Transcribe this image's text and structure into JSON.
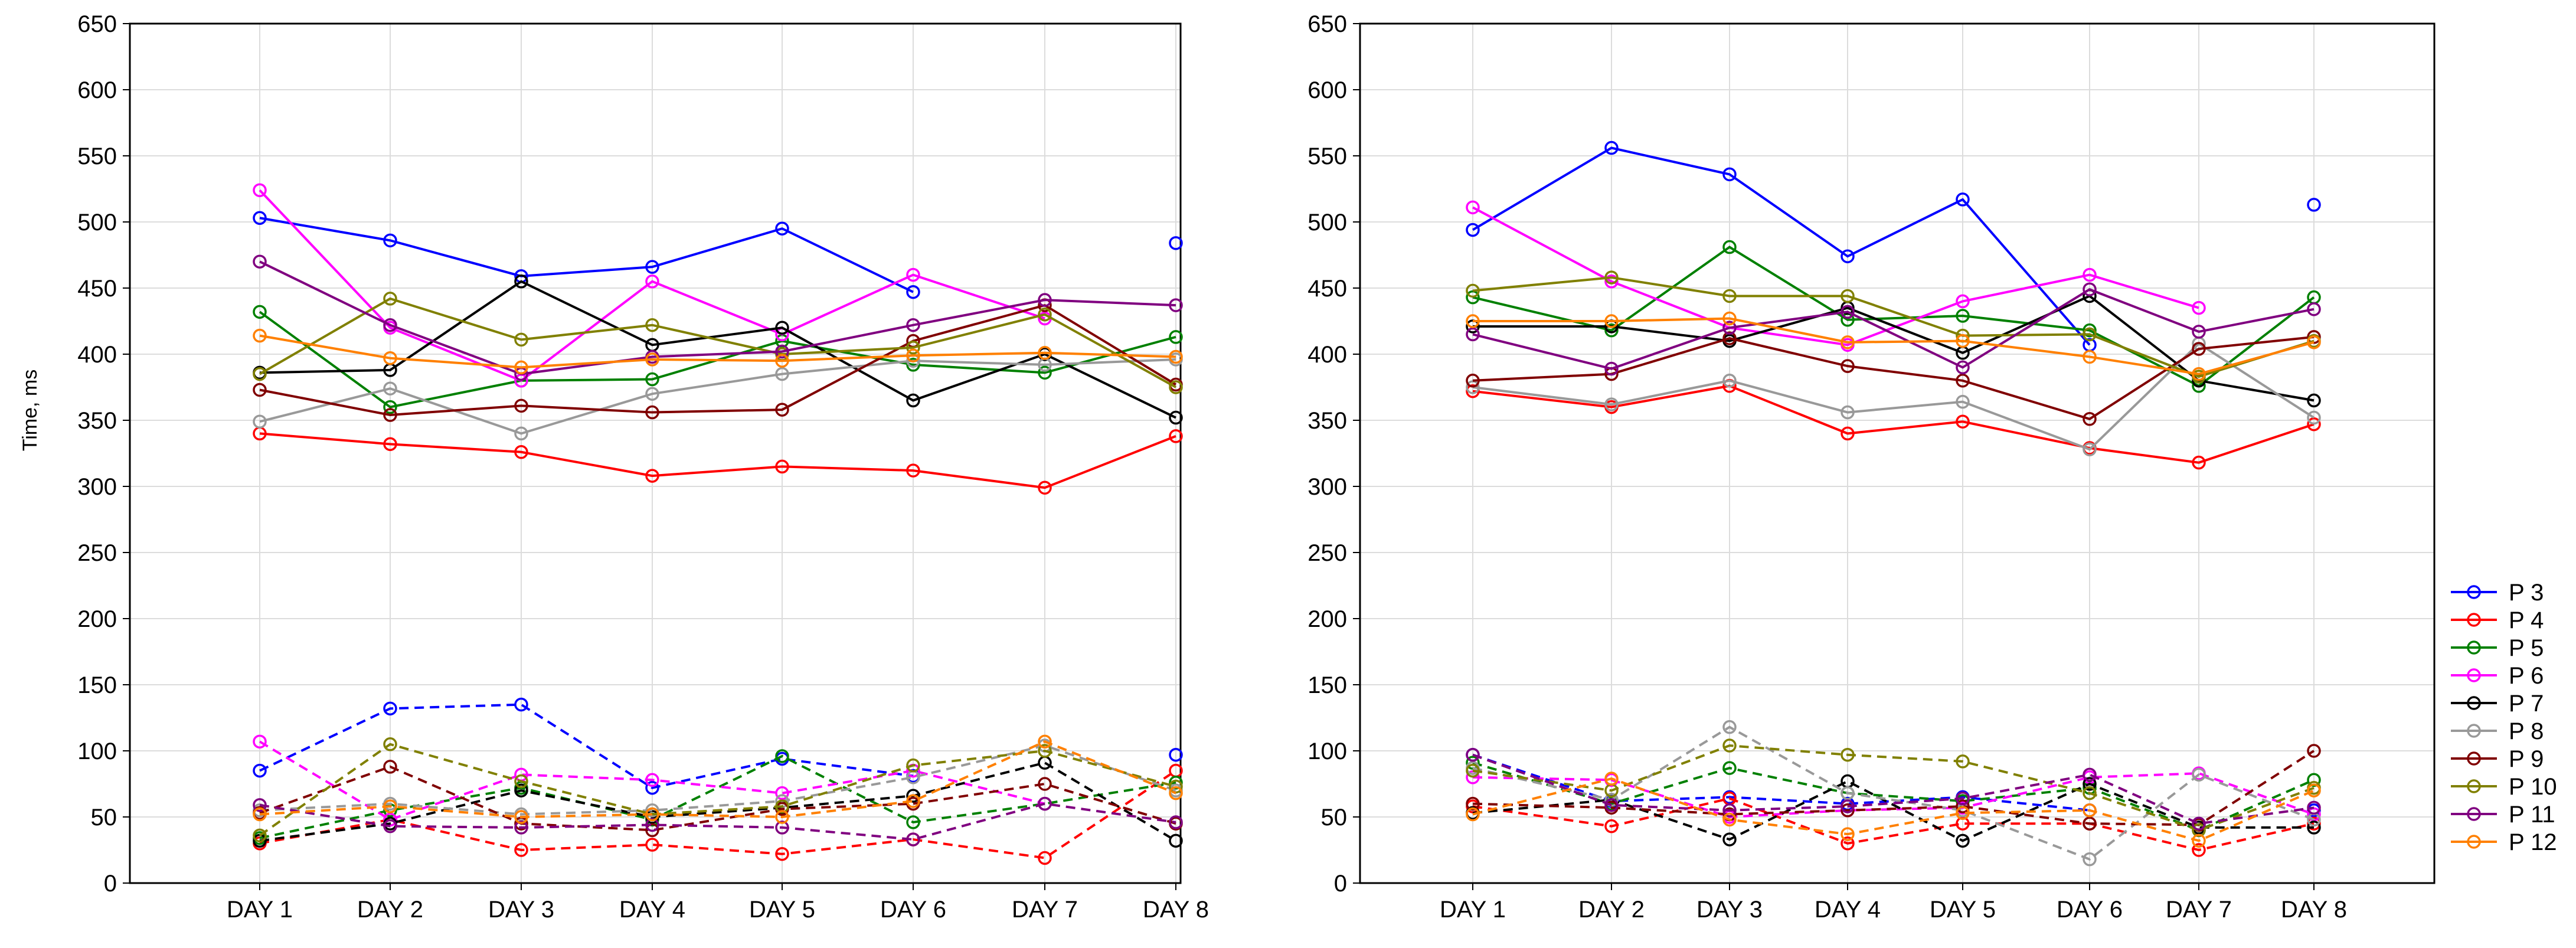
{
  "chart_data": [
    {
      "type": "line",
      "title": "",
      "xlabel": "",
      "ylabel": "Time, ms",
      "ylim": [
        0,
        650
      ],
      "yticks": [
        0,
        50,
        100,
        150,
        200,
        250,
        300,
        350,
        400,
        450,
        500,
        550,
        600,
        650
      ],
      "grid": true,
      "categories": [
        "DAY 1",
        "DAY 2",
        "DAY 3",
        "DAY 4",
        "DAY 5",
        "DAY 6",
        "DAY 7",
        "DAY 8"
      ],
      "series": [
        {
          "name": "P 3",
          "color": "#0000ff",
          "dash": false,
          "values": [
            503,
            486,
            459,
            466,
            495,
            447,
            null,
            484
          ]
        },
        {
          "name": "P 4",
          "color": "#ff0000",
          "dash": false,
          "values": [
            340,
            332,
            326,
            308,
            315,
            312,
            299,
            338
          ]
        },
        {
          "name": "P 5",
          "color": "#008000",
          "dash": false,
          "values": [
            432,
            360,
            380,
            381,
            410,
            392,
            386,
            413
          ]
        },
        {
          "name": "P 6",
          "color": "#ff00ff",
          "dash": false,
          "values": [
            524,
            420,
            380,
            455,
            415,
            460,
            427,
            null
          ]
        },
        {
          "name": "P 7",
          "color": "#000000",
          "dash": false,
          "values": [
            386,
            388,
            455,
            407,
            420,
            365,
            400,
            352
          ]
        },
        {
          "name": "P 8",
          "color": "#999999",
          "dash": false,
          "values": [
            349,
            374,
            340,
            370,
            385,
            395,
            392,
            396
          ]
        },
        {
          "name": "P 9",
          "color": "#800000",
          "dash": false,
          "values": [
            373,
            354,
            361,
            356,
            358,
            410,
            437,
            377
          ]
        },
        {
          "name": "P 10",
          "color": "#808000",
          "dash": false,
          "values": [
            385,
            442,
            411,
            422,
            400,
            405,
            430,
            375
          ]
        },
        {
          "name": "P 11",
          "color": "#800080",
          "dash": false,
          "values": [
            470,
            422,
            385,
            398,
            402,
            422,
            441,
            437
          ]
        },
        {
          "name": "P 12",
          "color": "#ff8000",
          "dash": false,
          "values": [
            414,
            397,
            390,
            396,
            395,
            399,
            401,
            398
          ]
        },
        {
          "name": "",
          "color": "#0000ff",
          "dash": true,
          "values": [
            85,
            132,
            135,
            72,
            94,
            81,
            null,
            97
          ]
        },
        {
          "name": "",
          "color": "#ff0000",
          "dash": true,
          "values": [
            30,
            48,
            25,
            29,
            22,
            33,
            19,
            85
          ]
        },
        {
          "name": "",
          "color": "#008000",
          "dash": true,
          "values": [
            34,
            55,
            72,
            48,
            96,
            46,
            60,
            76
          ]
        },
        {
          "name": "",
          "color": "#ff00ff",
          "dash": true,
          "values": [
            107,
            48,
            82,
            78,
            68,
            85,
            60,
            null
          ]
        },
        {
          "name": "",
          "color": "#000000",
          "dash": true,
          "values": [
            32,
            45,
            70,
            50,
            57,
            66,
            91,
            32
          ]
        },
        {
          "name": "",
          "color": "#999999",
          "dash": true,
          "values": [
            55,
            60,
            52,
            55,
            62,
            80,
            104,
            70
          ]
        },
        {
          "name": "",
          "color": "#800000",
          "dash": true,
          "values": [
            53,
            88,
            45,
            40,
            56,
            60,
            75,
            45
          ]
        },
        {
          "name": "",
          "color": "#808000",
          "dash": true,
          "values": [
            36,
            105,
            77,
            52,
            58,
            89,
            100,
            73
          ]
        },
        {
          "name": "",
          "color": "#800080",
          "dash": true,
          "values": [
            59,
            43,
            42,
            44,
            42,
            33,
            60,
            46
          ]
        },
        {
          "name": "",
          "color": "#ff8000",
          "dash": true,
          "values": [
            52,
            58,
            50,
            52,
            50,
            62,
            107,
            68
          ]
        }
      ]
    },
    {
      "type": "line",
      "title": "",
      "xlabel": "",
      "ylabel": "",
      "ylim": [
        0,
        650
      ],
      "yticks": [
        0,
        50,
        100,
        150,
        200,
        250,
        300,
        350,
        400,
        450,
        500,
        550,
        600,
        650
      ],
      "grid": true,
      "categories": [
        "DAY 1",
        "DAY 2",
        "DAY 3",
        "DAY 4",
        "DAY 5",
        "DAY 6",
        "DAY 7",
        "DAY 8"
      ],
      "series": [
        {
          "name": "P 3",
          "color": "#0000ff",
          "dash": false,
          "values": [
            494,
            556,
            536,
            474,
            517,
            407,
            null,
            513
          ]
        },
        {
          "name": "P 4",
          "color": "#ff0000",
          "dash": false,
          "values": [
            372,
            360,
            376,
            340,
            349,
            329,
            318,
            347
          ]
        },
        {
          "name": "P 5",
          "color": "#008000",
          "dash": false,
          "values": [
            443,
            418,
            481,
            426,
            429,
            418,
            376,
            443
          ]
        },
        {
          "name": "P 6",
          "color": "#ff00ff",
          "dash": false,
          "values": [
            511,
            455,
            420,
            407,
            440,
            460,
            435,
            null
          ]
        },
        {
          "name": "P 7",
          "color": "#000000",
          "dash": false,
          "values": [
            421,
            421,
            410,
            435,
            401,
            444,
            380,
            365
          ]
        },
        {
          "name": "P 8",
          "color": "#999999",
          "dash": false,
          "values": [
            375,
            362,
            380,
            356,
            364,
            328,
            408,
            352
          ]
        },
        {
          "name": "P 9",
          "color": "#800000",
          "dash": false,
          "values": [
            380,
            385,
            412,
            391,
            380,
            351,
            404,
            413
          ]
        },
        {
          "name": "P 10",
          "color": "#808000",
          "dash": false,
          "values": [
            448,
            458,
            444,
            444,
            414,
            415,
            383,
            410
          ]
        },
        {
          "name": "P 11",
          "color": "#800080",
          "dash": false,
          "values": [
            415,
            389,
            420,
            432,
            390,
            449,
            417,
            434
          ]
        },
        {
          "name": "P 12",
          "color": "#ff8000",
          "dash": false,
          "values": [
            425,
            425,
            427,
            409,
            410,
            398,
            385,
            409
          ]
        },
        {
          "name": "",
          "color": "#0000ff",
          "dash": true,
          "values": [
            97,
            62,
            65,
            60,
            65,
            55,
            null,
            55
          ]
        },
        {
          "name": "",
          "color": "#ff0000",
          "dash": true,
          "values": [
            58,
            43,
            64,
            30,
            45,
            45,
            25,
            45
          ]
        },
        {
          "name": "",
          "color": "#008000",
          "dash": true,
          "values": [
            91,
            60,
            87,
            68,
            62,
            72,
            40,
            78
          ]
        },
        {
          "name": "",
          "color": "#ff00ff",
          "dash": true,
          "values": [
            80,
            78,
            50,
            55,
            57,
            80,
            83,
            52
          ]
        },
        {
          "name": "",
          "color": "#000000",
          "dash": true,
          "values": [
            53,
            63,
            33,
            77,
            32,
            75,
            42,
            42
          ]
        },
        {
          "name": "",
          "color": "#999999",
          "dash": true,
          "values": [
            87,
            63,
            118,
            68,
            55,
            18,
            82,
            48
          ]
        },
        {
          "name": "",
          "color": "#800000",
          "dash": true,
          "values": [
            60,
            57,
            52,
            55,
            58,
            45,
            44,
            100
          ]
        },
        {
          "name": "",
          "color": "#808000",
          "dash": true,
          "values": [
            85,
            70,
            104,
            97,
            92,
            68,
            40,
            72
          ]
        },
        {
          "name": "",
          "color": "#800080",
          "dash": true,
          "values": [
            97,
            59,
            55,
            58,
            64,
            82,
            45,
            57
          ]
        },
        {
          "name": "",
          "color": "#ff8000",
          "dash": true,
          "values": [
            52,
            79,
            48,
            37,
            53,
            55,
            32,
            70
          ]
        }
      ]
    }
  ],
  "legend": {
    "placement": "bottom-right",
    "items": [
      {
        "label": "P 3",
        "color": "#0000ff"
      },
      {
        "label": "P 4",
        "color": "#ff0000"
      },
      {
        "label": "P 5",
        "color": "#008000"
      },
      {
        "label": "P 6",
        "color": "#ff00ff"
      },
      {
        "label": "P 7",
        "color": "#000000"
      },
      {
        "label": "P 8",
        "color": "#999999"
      },
      {
        "label": "P 9",
        "color": "#800000"
      },
      {
        "label": "P 10",
        "color": "#808000"
      },
      {
        "label": "P 11",
        "color": "#800080"
      },
      {
        "label": "P 12",
        "color": "#ff8000"
      }
    ]
  }
}
